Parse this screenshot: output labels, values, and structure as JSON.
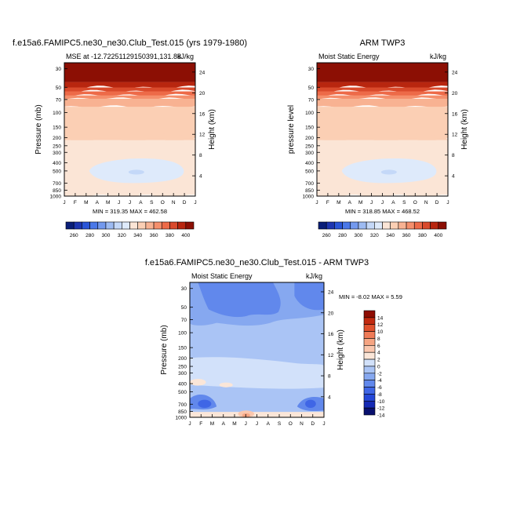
{
  "chart_data": [
    {
      "type": "heatmap",
      "title": "f.e15a6.FAMIPC5.ne30_ne30.Club_Test.015 (yrs 1979-1980)",
      "subtitle_left": "MSE at -12.72251129150391,131.88",
      "subtitle_right": "kJ/kg",
      "ylabel": "Pressure (mb)",
      "ylabel_right": "Height (km)",
      "x_ticks": [
        "J",
        "F",
        "M",
        "A",
        "M",
        "J",
        "J",
        "A",
        "S",
        "O",
        "N",
        "D",
        "J"
      ],
      "y_ticks": [
        30,
        50,
        70,
        100,
        150,
        200,
        250,
        300,
        400,
        500,
        700,
        850,
        1000
      ],
      "y_ticks_right": [
        24,
        20,
        16,
        12,
        8,
        4
      ],
      "min_max": "MIN = 319.35 MAX = 462.58",
      "colorbar_labels": [
        260,
        280,
        300,
        320,
        340,
        360,
        380,
        400
      ]
    },
    {
      "type": "heatmap",
      "title": "ARM TWP3",
      "subtitle_left": "Moist Static Energy",
      "subtitle_right": "kJ/kg",
      "ylabel": "pressure level",
      "ylabel_right": "Height (km)",
      "x_ticks": [
        "J",
        "F",
        "M",
        "A",
        "M",
        "J",
        "J",
        "A",
        "S",
        "O",
        "N",
        "D",
        "J"
      ],
      "y_ticks": [
        30,
        50,
        70,
        100,
        150,
        200,
        250,
        300,
        400,
        500,
        700,
        850,
        1000
      ],
      "y_ticks_right": [
        24,
        20,
        16,
        12,
        8,
        4
      ],
      "min_max": "MIN = 318.85 MAX = 468.52",
      "colorbar_labels": [
        260,
        280,
        300,
        320,
        340,
        360,
        380,
        400
      ]
    },
    {
      "type": "heatmap",
      "title": "f.e15a6.FAMIPC5.ne30_ne30.Club_Test.015 - ARM TWP3",
      "subtitle_left": "Moist Static Energy",
      "subtitle_right": "kJ/kg",
      "ylabel": "Pressure (mb)",
      "ylabel_right": "Height (km)",
      "x_ticks": [
        "J",
        "F",
        "M",
        "A",
        "M",
        "J",
        "J",
        "A",
        "S",
        "O",
        "N",
        "D",
        "J"
      ],
      "y_ticks": [
        30,
        50,
        70,
        100,
        150,
        200,
        250,
        300,
        400,
        500,
        700,
        850,
        1000
      ],
      "y_ticks_right": [
        24,
        20,
        16,
        12,
        8,
        4
      ],
      "min_max": "MIN =  -8.02 MAX =   5.59",
      "colorbar_labels": [
        14,
        12,
        10,
        8,
        6,
        4,
        2,
        0,
        -2,
        -4,
        -6,
        -8,
        -10,
        -12,
        -14
      ]
    }
  ],
  "colors": {
    "mse_scale": [
      "#0a1e78",
      "#1d35b0",
      "#2a55d8",
      "#4a78e8",
      "#7399ee",
      "#9dbbf2",
      "#c4d8f8",
      "#deeafb",
      "#fbe5d6",
      "#fbcfb4",
      "#f8b292",
      "#f58f6c",
      "#ed6a48",
      "#d94a2c",
      "#b8260f",
      "#8c0f04"
    ],
    "diff_scale": [
      "#08106e",
      "#1429b4",
      "#2447d8",
      "#3f66e6",
      "#6188ec",
      "#86a8f0",
      "#aac4f5",
      "#d2e1fa",
      "#fbe6d8",
      "#fac7ae",
      "#f6a583",
      "#ef7b57",
      "#e0512d",
      "#c22a10",
      "#8f0d03"
    ]
  }
}
